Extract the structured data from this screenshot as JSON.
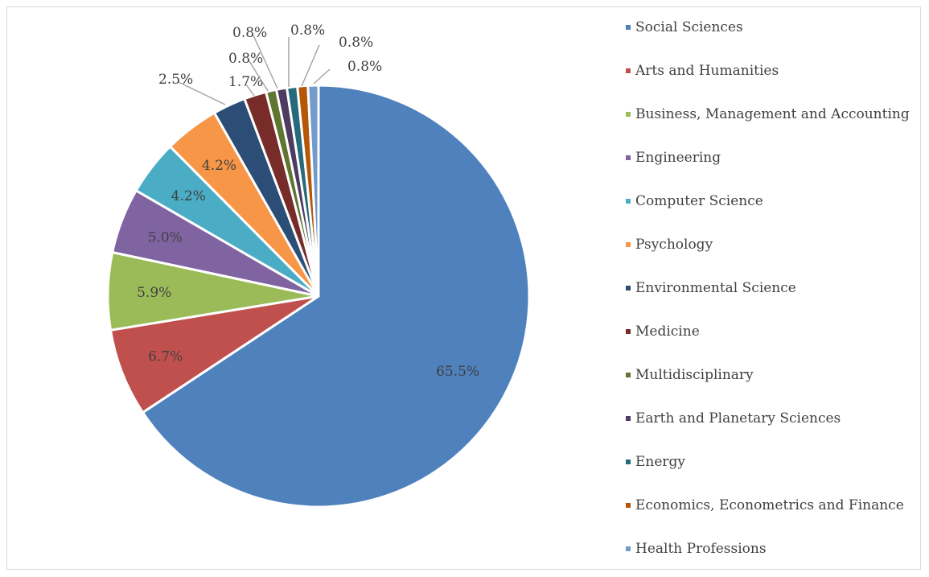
{
  "chart_data": {
    "type": "pie",
    "title": "",
    "legend_position": "right",
    "slices": [
      {
        "label": "Social Sciences",
        "value": 65.5,
        "display": "65.5%",
        "color": "#4f81bd"
      },
      {
        "label": "Arts and Humanities",
        "value": 6.7,
        "display": "6.7%",
        "color": "#c0504d"
      },
      {
        "label": "Business, Management and Accounting",
        "value": 5.9,
        "display": "5.9%",
        "color": "#9bbb59"
      },
      {
        "label": "Engineering",
        "value": 5.0,
        "display": "5.0%",
        "color": "#8064a2"
      },
      {
        "label": "Computer Science",
        "value": 4.2,
        "display": "4.2%",
        "color": "#4bacc6"
      },
      {
        "label": "Psychology",
        "value": 4.2,
        "display": "4.2%",
        "color": "#f79646"
      },
      {
        "label": "Environmental Science",
        "value": 2.5,
        "display": "2.5%",
        "color": "#2c4d75"
      },
      {
        "label": "Medicine",
        "value": 1.7,
        "display": "1.7%",
        "color": "#772c2a"
      },
      {
        "label": "Multidisciplinary",
        "value": 0.8,
        "display": "0.8%",
        "color": "#5f7530"
      },
      {
        "label": "Earth and Planetary Sciences",
        "value": 0.8,
        "display": "0.8%",
        "color": "#4d3b62"
      },
      {
        "label": "Energy",
        "value": 0.8,
        "display": "0.8%",
        "color": "#276a7c"
      },
      {
        "label": "Economics, Econometrics and Finance",
        "value": 0.8,
        "display": "0.8%",
        "color": "#b65708"
      },
      {
        "label": "Health Professions",
        "value": 0.8,
        "display": "0.8%",
        "color": "#729aca"
      }
    ]
  }
}
